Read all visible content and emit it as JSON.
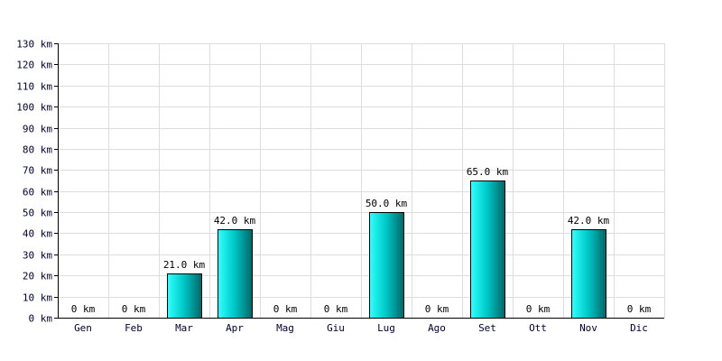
{
  "chart_data": {
    "type": "bar",
    "categories": [
      "Gen",
      "Feb",
      "Mar",
      "Apr",
      "Mag",
      "Giu",
      "Lug",
      "Ago",
      "Set",
      "Ott",
      "Nov",
      "Dic"
    ],
    "values": [
      0,
      0,
      21.0,
      42.0,
      0,
      0,
      50.0,
      0,
      65.0,
      0,
      42.0,
      0
    ],
    "data_labels": [
      "0 km",
      "0 km",
      "21.0 km",
      "42.0 km",
      "0 km",
      "0 km",
      "50.0 km",
      "0 km",
      "65.0 km",
      "0 km",
      "42.0 km",
      "0 km"
    ],
    "y_ticks": [
      0,
      10,
      20,
      30,
      40,
      50,
      60,
      70,
      80,
      90,
      100,
      110,
      120,
      130
    ],
    "y_tick_labels": [
      "0 km",
      "10 km",
      "20 km",
      "30 km",
      "40 km",
      "50 km",
      "60 km",
      "70 km",
      "80 km",
      "90 km",
      "100 km",
      "110 km",
      "120 km",
      "130 km"
    ],
    "ylim": [
      0,
      130
    ],
    "grid": true,
    "colors": {
      "bar_light": "#33ffff",
      "bar_mid": "#00cccc",
      "bar_dark": "#006666"
    }
  }
}
